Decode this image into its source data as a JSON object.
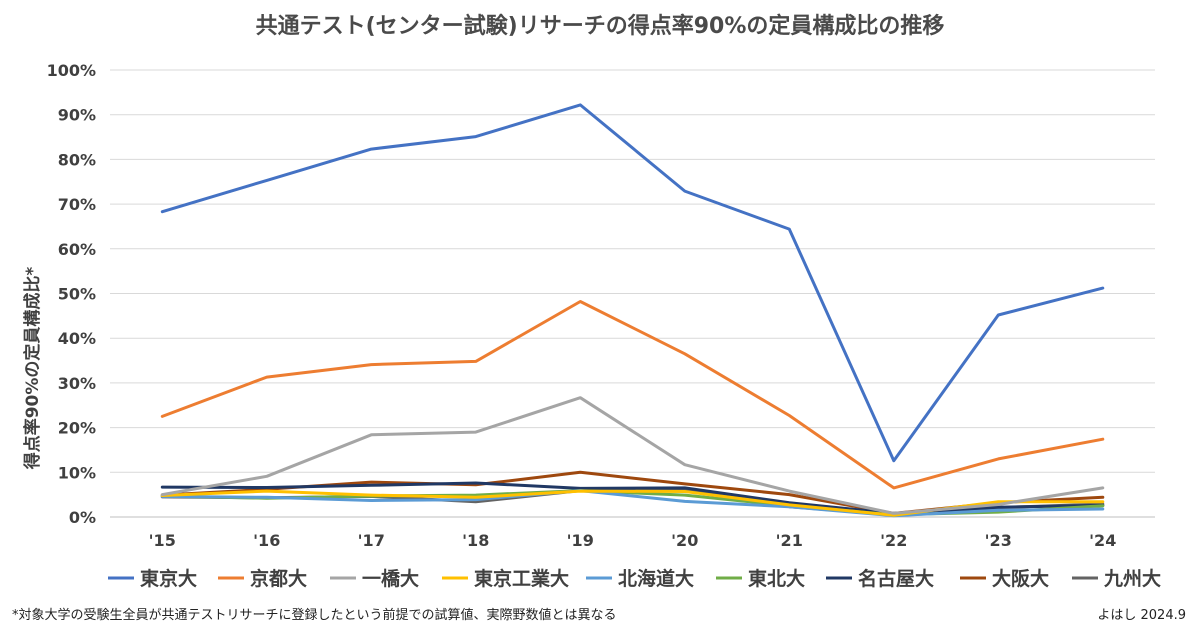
{
  "chart_data": {
    "type": "line",
    "title": "共通テスト(センター試験)リサーチの得点率90%の定員構成比の推移",
    "xlabel": "",
    "ylabel": "得点率90%の定員構成比*",
    "categories": [
      "'15",
      "'16",
      "'17",
      "'18",
      "'19",
      "'20",
      "'21",
      "'22",
      "'23",
      "'24"
    ],
    "ylim": [
      0,
      100
    ],
    "yticks": [
      "0%",
      "10%",
      "20%",
      "30%",
      "40%",
      "50%",
      "60%",
      "70%",
      "80%",
      "90%",
      "100%"
    ],
    "grid": true,
    "legend_position": "bottom",
    "series": [
      {
        "name": "東京大",
        "color": "#4472c4",
        "values": [
          68.3,
          75.3,
          82.3,
          85.1,
          92.2,
          72.9,
          64.4,
          12.6,
          45.2,
          51.2
        ]
      },
      {
        "name": "京都大",
        "color": "#ed7d31",
        "values": [
          22.5,
          31.3,
          34.1,
          34.8,
          48.2,
          36.5,
          22.7,
          6.5,
          13.0,
          17.4
        ]
      },
      {
        "name": "一橋大",
        "color": "#a5a5a5",
        "values": [
          5.0,
          9.1,
          18.4,
          19.0,
          26.7,
          11.7,
          5.8,
          0.8,
          2.8,
          6.5
        ]
      },
      {
        "name": "東京工業大",
        "color": "#ffc000",
        "values": [
          4.8,
          5.8,
          4.9,
          4.4,
          5.8,
          5.7,
          2.7,
          0.4,
          3.4,
          3.4
        ]
      },
      {
        "name": "北海道大",
        "color": "#5b9bd5",
        "values": [
          4.6,
          4.4,
          3.7,
          3.9,
          5.9,
          3.5,
          2.3,
          0.3,
          1.5,
          1.8
        ]
      },
      {
        "name": "東北大",
        "color": "#70ad47",
        "values": [
          4.7,
          4.2,
          4.7,
          4.9,
          5.9,
          4.9,
          2.5,
          0.5,
          1.1,
          2.5
        ]
      },
      {
        "name": "名古屋大",
        "color": "#203864",
        "values": [
          6.7,
          6.6,
          7.1,
          7.6,
          6.4,
          6.5,
          3.2,
          0.8,
          2.2,
          2.6
        ]
      },
      {
        "name": "大阪大",
        "color": "#9e480e",
        "values": [
          4.9,
          6.2,
          7.8,
          7.2,
          10.0,
          7.4,
          5.0,
          0.8,
          3.2,
          4.4
        ]
      },
      {
        "name": "九州大",
        "color": "#636363",
        "values": [
          4.5,
          4.3,
          4.6,
          3.4,
          5.9,
          6.2,
          2.3,
          0.5,
          2.1,
          2.9
        ]
      }
    ]
  },
  "footnote": "*対象大学の受験生全員が共通テストリサーチに登録したという前提での試算値、実際野数値とは異なる",
  "credit": "よはし 2024.9"
}
